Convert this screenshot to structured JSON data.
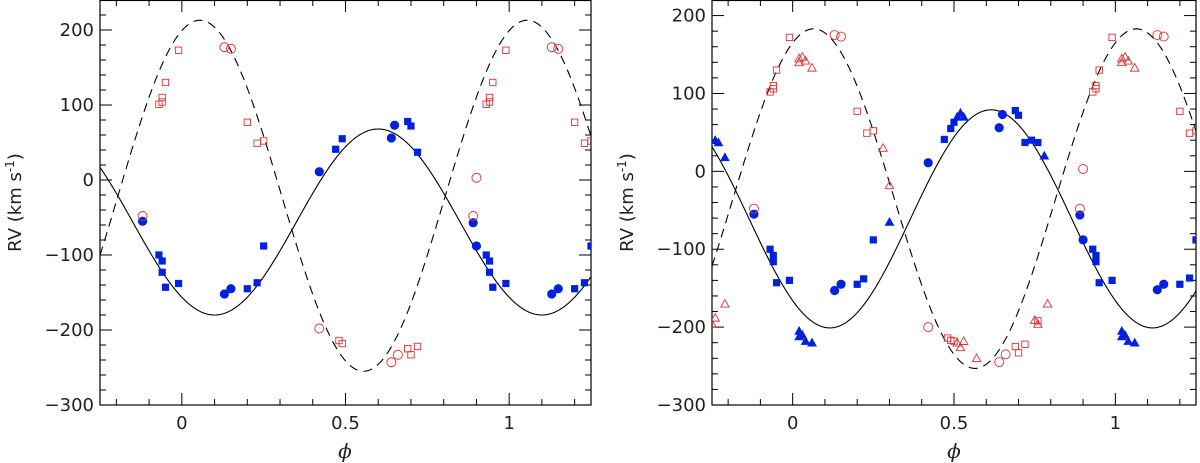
{
  "chart_data": [
    {
      "type": "scatter",
      "panel": "left",
      "xlabel": "ϕ",
      "ylabel_prefix": "RV (km s",
      "ylabel_sup": "-1",
      "ylabel_suffix": ")",
      "xlim": [
        -0.25,
        1.25
      ],
      "ylim": [
        -300,
        240
      ],
      "xticks": [
        {
          "value": 0,
          "label": "0"
        },
        {
          "value": 0.5,
          "label": "0.5"
        },
        {
          "value": 1,
          "label": "1"
        }
      ],
      "yticks": [
        {
          "value": -300,
          "label": "−300"
        },
        {
          "value": -200,
          "label": "−200"
        },
        {
          "value": -100,
          "label": "−100"
        },
        {
          "value": 0,
          "label": "0"
        },
        {
          "value": 100,
          "label": "100"
        },
        {
          "value": 200,
          "label": "200"
        }
      ],
      "curves": [
        {
          "name": "primary orbit fit",
          "style": "solid",
          "color": "#000000",
          "gamma": -56,
          "K": 124,
          "phi0": 0.35
        },
        {
          "name": "secondary orbit fit",
          "style": "dashed",
          "color": "#000000",
          "gamma": -21,
          "K": 234,
          "phi0": -0.195
        }
      ],
      "series": [
        {
          "name": "primary circles",
          "marker": "circle",
          "fill": "#0022dd",
          "stroke": "#0022dd",
          "filled": true,
          "points": [
            [
              -0.12,
              -55
            ],
            [
              0.13,
              -152
            ],
            [
              0.15,
              -145
            ],
            [
              0.42,
              11
            ],
            [
              0.64,
              56
            ],
            [
              0.65,
              73
            ],
            [
              0.89,
              -57
            ],
            [
              0.9,
              -88
            ],
            [
              1.13,
              -152
            ],
            [
              1.15,
              -145
            ]
          ]
        },
        {
          "name": "primary squares",
          "marker": "square",
          "fill": "#0022dd",
          "stroke": "#0022dd",
          "filled": true,
          "points": [
            [
              -0.07,
              -100
            ],
            [
              -0.06,
              -108
            ],
            [
              -0.06,
              -123
            ],
            [
              -0.05,
              -143
            ],
            [
              -0.01,
              -138
            ],
            [
              0.2,
              -145
            ],
            [
              0.23,
              -137
            ],
            [
              0.25,
              -88
            ],
            [
              0.47,
              41
            ],
            [
              0.49,
              55
            ],
            [
              0.69,
              78
            ],
            [
              0.7,
              72
            ],
            [
              0.72,
              37
            ],
            [
              0.93,
              -100
            ],
            [
              0.94,
              -108
            ],
            [
              0.94,
              -123
            ],
            [
              0.95,
              -143
            ],
            [
              0.99,
              -138
            ],
            [
              1.2,
              -145
            ],
            [
              1.23,
              -137
            ],
            [
              1.25,
              -88
            ]
          ]
        },
        {
          "name": "secondary circles",
          "marker": "circle",
          "fill": "none",
          "stroke": "#e03030",
          "filled": false,
          "points": [
            [
              -0.12,
              -48
            ],
            [
              0.13,
              177
            ],
            [
              0.15,
              175
            ],
            [
              0.42,
              -198
            ],
            [
              0.64,
              -243
            ],
            [
              0.66,
              -233
            ],
            [
              0.89,
              -48
            ],
            [
              0.9,
              3
            ],
            [
              1.13,
              177
            ],
            [
              1.15,
              175
            ]
          ]
        },
        {
          "name": "secondary squares",
          "marker": "square",
          "fill": "none",
          "stroke": "#e03030",
          "filled": false,
          "points": [
            [
              -0.07,
              101
            ],
            [
              -0.06,
              104
            ],
            [
              -0.06,
              110
            ],
            [
              -0.05,
              130
            ],
            [
              -0.01,
              173
            ],
            [
              0.2,
              77
            ],
            [
              0.23,
              49
            ],
            [
              0.25,
              52
            ],
            [
              0.48,
              -214
            ],
            [
              0.49,
              -218
            ],
            [
              0.69,
              -225
            ],
            [
              0.7,
              -233
            ],
            [
              0.72,
              -222
            ],
            [
              0.93,
              101
            ],
            [
              0.94,
              104
            ],
            [
              0.94,
              110
            ],
            [
              0.95,
              130
            ],
            [
              0.99,
              173
            ],
            [
              1.2,
              77
            ],
            [
              1.23,
              49
            ],
            [
              1.25,
              52
            ]
          ]
        }
      ]
    },
    {
      "type": "scatter",
      "panel": "right",
      "xlabel": "ϕ",
      "ylabel_prefix": "RV (km s",
      "ylabel_sup": "-1",
      "ylabel_suffix": ")",
      "xlim": [
        -0.25,
        1.25
      ],
      "ylim": [
        -300,
        220
      ],
      "xticks": [
        {
          "value": 0,
          "label": "0"
        },
        {
          "value": 0.5,
          "label": "0.5"
        },
        {
          "value": 1,
          "label": "1"
        }
      ],
      "yticks": [
        {
          "value": -300,
          "label": "−300"
        },
        {
          "value": -200,
          "label": "−200"
        },
        {
          "value": -100,
          "label": "−100"
        },
        {
          "value": 0,
          "label": "0"
        },
        {
          "value": 100,
          "label": "100"
        },
        {
          "value": 200,
          "label": "200"
        }
      ],
      "curves": [
        {
          "name": "primary orbit fit",
          "style": "solid",
          "color": "#000000",
          "gamma": -61,
          "K": 140,
          "phi0": 0.365
        },
        {
          "name": "secondary orbit fit",
          "style": "dashed",
          "color": "#000000",
          "gamma": -35,
          "K": 218,
          "phi0": -0.185
        }
      ],
      "series": [
        {
          "name": "primary circles",
          "marker": "circle",
          "fill": "#0022dd",
          "stroke": "#0022dd",
          "filled": true,
          "points": [
            [
              -0.12,
              -55
            ],
            [
              0.13,
              -153
            ],
            [
              0.15,
              -145
            ],
            [
              0.42,
              11
            ],
            [
              0.64,
              56
            ],
            [
              0.65,
              73
            ],
            [
              0.89,
              -56
            ],
            [
              0.9,
              -88
            ],
            [
              1.13,
              -152
            ],
            [
              1.15,
              -145
            ]
          ]
        },
        {
          "name": "primary squares",
          "marker": "square",
          "fill": "#0022dd",
          "stroke": "#0022dd",
          "filled": true,
          "points": [
            [
              -0.07,
              -100
            ],
            [
              -0.06,
              -108
            ],
            [
              -0.06,
              -116
            ],
            [
              -0.05,
              -143
            ],
            [
              -0.01,
              -140
            ],
            [
              0.2,
              -145
            ],
            [
              0.22,
              -138
            ],
            [
              0.25,
              -88
            ],
            [
              0.47,
              41
            ],
            [
              0.49,
              55
            ],
            [
              0.5,
              63
            ],
            [
              0.69,
              78
            ],
            [
              0.7,
              72
            ],
            [
              0.72,
              37
            ],
            [
              0.74,
              40
            ],
            [
              0.76,
              37
            ],
            [
              0.93,
              -100
            ],
            [
              0.94,
              -108
            ],
            [
              0.94,
              -116
            ],
            [
              0.95,
              -143
            ],
            [
              0.99,
              -140
            ],
            [
              1.2,
              -145
            ],
            [
              1.23,
              -137
            ],
            [
              1.25,
              -88
            ]
          ]
        },
        {
          "name": "primary triangles",
          "marker": "triangle",
          "fill": "#0022dd",
          "stroke": "#0022dd",
          "filled": true,
          "points": [
            [
              -0.24,
              40
            ],
            [
              -0.23,
              37
            ],
            [
              -0.21,
              18
            ],
            [
              0.02,
              -205
            ],
            [
              0.02,
              -212
            ],
            [
              0.03,
              -210
            ],
            [
              0.04,
              -218
            ],
            [
              0.06,
              -220
            ],
            [
              0.3,
              -65
            ],
            [
              0.51,
              70
            ],
            [
              0.52,
              75
            ],
            [
              0.53,
              70
            ],
            [
              0.78,
              20
            ],
            [
              1.02,
              -205
            ],
            [
              1.02,
              -212
            ],
            [
              1.03,
              -210
            ],
            [
              1.04,
              -218
            ],
            [
              1.06,
              -220
            ]
          ]
        },
        {
          "name": "secondary circles",
          "marker": "circle",
          "fill": "none",
          "stroke": "#e03030",
          "filled": false,
          "points": [
            [
              -0.12,
              -48
            ],
            [
              0.13,
              175
            ],
            [
              0.15,
              173
            ],
            [
              0.42,
              -200
            ],
            [
              0.64,
              -245
            ],
            [
              0.66,
              -235
            ],
            [
              0.89,
              -48
            ],
            [
              0.9,
              3
            ],
            [
              1.13,
              175
            ],
            [
              1.15,
              173
            ]
          ]
        },
        {
          "name": "secondary squares",
          "marker": "square",
          "fill": "none",
          "stroke": "#e03030",
          "filled": false,
          "points": [
            [
              -0.07,
              102
            ],
            [
              -0.06,
              110
            ],
            [
              -0.06,
              106
            ],
            [
              -0.05,
              130
            ],
            [
              -0.01,
              172
            ],
            [
              0.2,
              77
            ],
            [
              0.23,
              49
            ],
            [
              0.25,
              52
            ],
            [
              0.48,
              -214
            ],
            [
              0.49,
              -217
            ],
            [
              0.5,
              -218
            ],
            [
              0.69,
              -225
            ],
            [
              0.7,
              -233
            ],
            [
              0.72,
              -222
            ],
            [
              0.76,
              -192
            ],
            [
              0.93,
              102
            ],
            [
              0.94,
              110
            ],
            [
              0.94,
              106
            ],
            [
              0.95,
              130
            ],
            [
              0.99,
              172
            ],
            [
              1.2,
              77
            ],
            [
              1.23,
              49
            ],
            [
              1.25,
              52
            ]
          ]
        },
        {
          "name": "secondary triangles",
          "marker": "triangle",
          "fill": "none",
          "stroke": "#e03030",
          "filled": false,
          "points": [
            [
              -0.25,
              -196
            ],
            [
              -0.24,
              -188
            ],
            [
              -0.21,
              -170
            ],
            [
              0.02,
              140
            ],
            [
              0.02,
              145
            ],
            [
              0.03,
              147
            ],
            [
              0.04,
              142
            ],
            [
              0.06,
              133
            ],
            [
              0.28,
              30
            ],
            [
              0.3,
              -18
            ],
            [
              0.51,
              -220
            ],
            [
              0.52,
              -226
            ],
            [
              0.53,
              -218
            ],
            [
              0.57,
              -240
            ],
            [
              0.75,
              -191
            ],
            [
              0.76,
              -196
            ],
            [
              0.79,
              -170
            ],
            [
              1.02,
              140
            ],
            [
              1.02,
              145
            ],
            [
              1.03,
              147
            ],
            [
              1.04,
              142
            ],
            [
              1.06,
              133
            ]
          ]
        }
      ]
    }
  ]
}
